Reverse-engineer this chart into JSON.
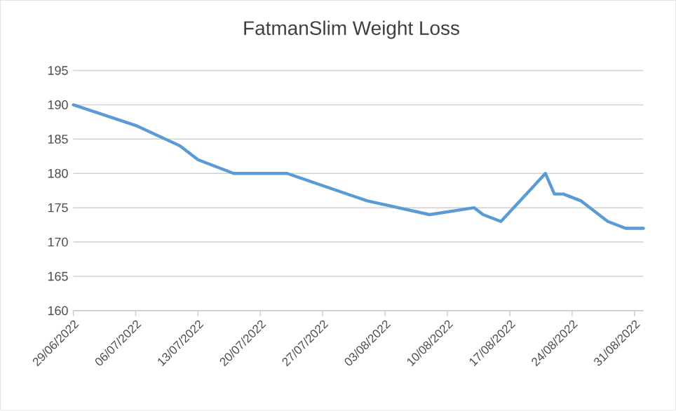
{
  "chart_data": {
    "type": "line",
    "title": "FatmanSlim Weight Loss",
    "x": [
      "2022-06-29",
      "2022-07-06",
      "2022-07-11",
      "2022-07-13",
      "2022-07-17",
      "2022-07-23",
      "2022-08-01",
      "2022-08-08",
      "2022-08-13",
      "2022-08-14",
      "2022-08-16",
      "2022-08-21",
      "2022-08-22",
      "2022-08-23",
      "2022-08-25",
      "2022-08-28",
      "2022-08-30",
      "2022-09-01"
    ],
    "series": [
      {
        "color": "#5b9bd5",
        "values": [
          190,
          187,
          184,
          182,
          180,
          180,
          176,
          174,
          175,
          174,
          173,
          180,
          177,
          177,
          176,
          173,
          172,
          172
        ]
      }
    ],
    "xlim": [
      "2022-06-29",
      "2022-09-01"
    ],
    "xticks": [
      {
        "value": "2022-06-29",
        "label": "29/06/2022"
      },
      {
        "value": "2022-07-06",
        "label": "06/07/2022"
      },
      {
        "value": "2022-07-13",
        "label": "13/07/2022"
      },
      {
        "value": "2022-07-20",
        "label": "20/07/2022"
      },
      {
        "value": "2022-07-27",
        "label": "27/07/2022"
      },
      {
        "value": "2022-08-03",
        "label": "03/08/2022"
      },
      {
        "value": "2022-08-10",
        "label": "10/08/2022"
      },
      {
        "value": "2022-08-17",
        "label": "17/08/2022"
      },
      {
        "value": "2022-08-24",
        "label": "24/08/2022"
      },
      {
        "value": "2022-08-31",
        "label": "31/08/2022"
      }
    ],
    "ylim": [
      160,
      195
    ],
    "yticks": [
      160,
      165,
      170,
      175,
      180,
      185,
      190,
      195
    ],
    "grid": "y",
    "marker": "none",
    "line_style": "solid"
  }
}
